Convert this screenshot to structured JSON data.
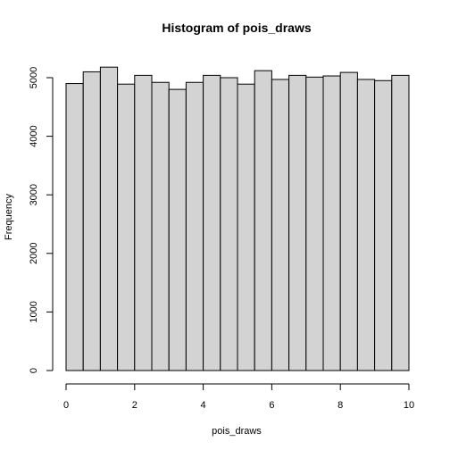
{
  "chart_data": {
    "type": "bar",
    "title": "Histogram of pois_draws",
    "xlabel": "pois_draws",
    "ylabel": "Frequency",
    "bin_edges": [
      0,
      0.5,
      1,
      1.5,
      2,
      2.5,
      3,
      3.5,
      4,
      4.5,
      5,
      5.5,
      6,
      6.5,
      7,
      7.5,
      8,
      8.5,
      9,
      9.5,
      10
    ],
    "values": [
      4900,
      5100,
      5180,
      4890,
      5040,
      4920,
      4800,
      4920,
      5040,
      5000,
      4890,
      5120,
      4970,
      5040,
      5010,
      5030,
      5090,
      4970,
      4950,
      5040
    ],
    "xlim": [
      0,
      10
    ],
    "ylim": [
      0,
      5200
    ],
    "x_ticks": [
      0,
      2,
      4,
      6,
      8,
      10
    ],
    "x_tick_labels": [
      "0",
      "2",
      "4",
      "6",
      "8",
      "10"
    ],
    "y_ticks": [
      0,
      1000,
      2000,
      3000,
      4000,
      5000
    ],
    "y_tick_labels": [
      "0",
      "1000",
      "2000",
      "3000",
      "4000",
      "5000"
    ],
    "grid": false,
    "legend": "none",
    "colors": {
      "bar_fill": "#d3d3d3",
      "bar_stroke": "#000000"
    }
  }
}
